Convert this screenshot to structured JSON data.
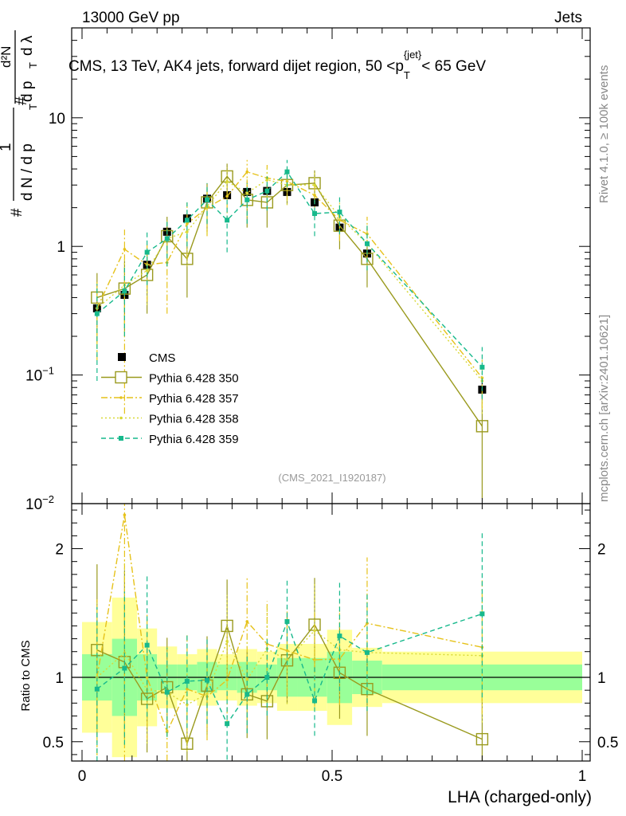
{
  "header": {
    "left": "13000 GeV pp",
    "right": "Jets"
  },
  "title": {
    "main": "CMS, 13 TeV, AK4 jets, forward dijet region, 50 <p",
    "sub": "T",
    "sup": "{jet}",
    "tail": "< 65 GeV"
  },
  "side_labels": {
    "rivet": "Rivet 4.1.0, ≥ 100k events",
    "mcplots": "mcplots.cern.ch [arXiv:2401.10621]"
  },
  "watermark": "(CMS_2021_I1920187)",
  "chart_data": {
    "type": "line",
    "title": "CMS, 13 TeV, AK4 jets, forward dijet region, 50 < pT{jet} < 65 GeV",
    "xlabel": "LHA (charged-only)",
    "ylabel_parts": {
      "hash1": "#",
      "one": "1",
      "dN": "d N / d p",
      "T": "T",
      "hash2": "#",
      "num2": "d²N",
      "den2": "d p",
      "T2": "T",
      "dl": "d λ"
    },
    "ratio_ylabel": "Ratio to CMS",
    "xlim": [
      0,
      1
    ],
    "ylim": [
      0.01,
      50
    ],
    "ylog": true,
    "ratio_ylim": [
      0.35,
      2.35
    ],
    "x_ticks": [
      {
        "value": 0,
        "label": "0"
      },
      {
        "value": 0.5,
        "label": "0.5"
      },
      {
        "value": 1,
        "label": "1"
      }
    ],
    "y_ticks": [
      {
        "value": 10,
        "label": "10"
      },
      {
        "value": 1,
        "label": "1"
      },
      {
        "value": 0.1,
        "label": "10",
        "exp": "−1"
      },
      {
        "value": 0.01,
        "label": "10",
        "exp": "−2"
      }
    ],
    "ratio_ticks": [
      {
        "value": 2,
        "label": "2"
      },
      {
        "value": 1,
        "label": "1"
      },
      {
        "value": 0.5,
        "label": "0.5"
      }
    ],
    "bins": [
      0,
      0.06,
      0.11,
      0.15,
      0.19,
      0.23,
      0.27,
      0.31,
      0.35,
      0.39,
      0.43,
      0.49,
      0.54,
      0.6,
      1.0
    ],
    "x": [
      0.03,
      0.085,
      0.13,
      0.17,
      0.21,
      0.25,
      0.29,
      0.33,
      0.37,
      0.41,
      0.465,
      0.515,
      0.57,
      0.8
    ],
    "band_green": [
      0.82,
      0.7,
      0.82,
      0.9,
      0.9,
      0.88,
      0.9,
      0.88,
      0.9,
      0.85,
      0.85,
      0.8,
      0.87,
      0.9
    ],
    "band_green_hi": [
      1.18,
      1.3,
      1.18,
      1.1,
      1.1,
      1.12,
      1.1,
      1.12,
      1.1,
      1.15,
      1.15,
      1.2,
      1.13,
      1.1
    ],
    "band_yellow_lo": [
      0.57,
      0.38,
      0.62,
      0.76,
      0.82,
      0.78,
      0.82,
      0.78,
      0.8,
      0.74,
      0.74,
      0.63,
      0.77,
      0.8
    ],
    "band_yellow_hi": [
      1.43,
      1.62,
      1.38,
      1.24,
      1.18,
      1.22,
      1.18,
      1.22,
      1.2,
      1.26,
      1.26,
      1.37,
      1.23,
      1.2
    ],
    "legend": [
      "CMS",
      "Pythia 6.428 350",
      "Pythia 6.428 357",
      "Pythia 6.428 358",
      "Pythia 6.428 359"
    ],
    "series": [
      {
        "name": "CMS",
        "color": "#000000",
        "style": "data",
        "y": [
          0.33,
          0.42,
          0.72,
          1.3,
          1.65,
          2.35,
          2.5,
          2.65,
          2.7,
          2.65,
          2.2,
          1.4,
          0.88,
          0.077
        ],
        "err": [
          0.04,
          0.04,
          0.07,
          0.12,
          0.15,
          0.18,
          0.18,
          0.18,
          0.18,
          0.18,
          0.18,
          0.13,
          0.09,
          0.01
        ]
      },
      {
        "name": "Pythia 6.428 350",
        "color": "#9a9a1e",
        "style": "solid",
        "marker": "open-square",
        "y": [
          0.4,
          0.47,
          0.6,
          1.2,
          0.8,
          2.2,
          3.5,
          2.3,
          2.2,
          3.0,
          3.1,
          1.45,
          0.8,
          0.04
        ],
        "err_lo": [
          0.22,
          0.25,
          0.3,
          0.5,
          0.4,
          0.9,
          1.0,
          0.9,
          0.8,
          0.9,
          0.8,
          0.5,
          0.32,
          0.029
        ],
        "err_hi": [
          0.22,
          0.3,
          0.3,
          0.5,
          0.4,
          0.9,
          0.9,
          0.9,
          0.8,
          0.9,
          0.8,
          0.5,
          0.32,
          0.03
        ]
      },
      {
        "name": "Pythia 6.428 357",
        "color": "#e6c21a",
        "style": "dashdot",
        "marker": "dot",
        "y": [
          0.33,
          0.95,
          0.72,
          0.75,
          1.5,
          2.0,
          2.45,
          3.8,
          3.4,
          3.2,
          2.5,
          1.6,
          1.25,
          0.095
        ],
        "err_lo": [
          0.2,
          0.9,
          0.35,
          0.45,
          0.7,
          0.8,
          0.9,
          0.9,
          0.9,
          0.9,
          0.8,
          0.5,
          0.45,
          0.04
        ],
        "err_hi": [
          0.2,
          0.4,
          0.35,
          0.45,
          0.7,
          0.8,
          0.9,
          0.9,
          0.9,
          0.9,
          0.8,
          0.5,
          0.45,
          0.04
        ]
      },
      {
        "name": "Pythia 6.428 358",
        "color": "#d8d835",
        "style": "dotted",
        "marker": "dot",
        "y": [
          0.33,
          0.5,
          0.65,
          1.15,
          1.3,
          2.05,
          3.2,
          2.6,
          3.3,
          3.0,
          3.0,
          1.7,
          1.05,
          0.09
        ],
        "err_lo": [
          0.2,
          0.3,
          0.3,
          0.45,
          0.6,
          0.8,
          0.9,
          0.9,
          0.9,
          0.9,
          0.8,
          0.5,
          0.4,
          0.04
        ],
        "err_hi": [
          0.2,
          0.3,
          0.3,
          0.45,
          0.6,
          0.8,
          0.9,
          0.9,
          0.9,
          0.9,
          0.8,
          0.5,
          0.4,
          0.04
        ]
      },
      {
        "name": "Pythia 6.428 359",
        "color": "#17b98c",
        "style": "dashed",
        "marker": "filled-square",
        "y": [
          0.3,
          0.45,
          0.9,
          1.15,
          1.6,
          2.3,
          1.6,
          2.3,
          2.7,
          3.8,
          1.8,
          1.85,
          1.05,
          0.115
        ],
        "err_lo": [
          0.21,
          0.25,
          0.4,
          0.45,
          0.6,
          0.8,
          0.7,
          0.8,
          0.8,
          0.9,
          0.6,
          0.6,
          0.4,
          0.05
        ],
        "err_hi": [
          0.21,
          0.25,
          0.4,
          0.45,
          0.6,
          0.8,
          0.7,
          0.8,
          0.8,
          0.9,
          0.6,
          0.6,
          0.4,
          0.05
        ]
      }
    ]
  }
}
